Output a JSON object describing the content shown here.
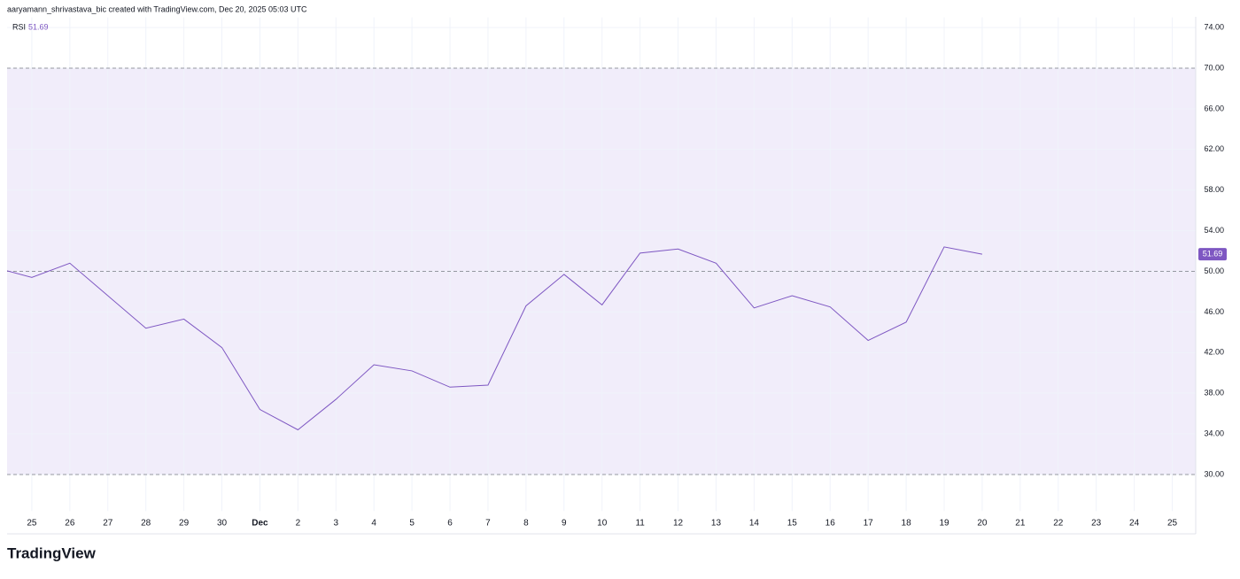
{
  "header": {
    "attribution": "aaryamann_shrivastava_bic created with TradingView.com, Dec 20, 2025 05:03 UTC"
  },
  "chart_data": {
    "type": "line",
    "categories": [
      null,
      "25",
      "26",
      "27",
      "28",
      "29",
      "30",
      "Dec",
      "2",
      "3",
      "4",
      "5",
      "6",
      "7",
      "8",
      "9",
      "10",
      "11",
      "12",
      "13",
      "14",
      "15",
      "16",
      "17",
      "18",
      "19",
      "20",
      "21",
      "22",
      "23",
      "24",
      "25"
    ],
    "series": [
      {
        "name": "RSI",
        "color": "#7e57c2",
        "values": [
          50.4,
          49.4,
          50.8,
          47.6,
          44.4,
          45.3,
          42.5,
          36.4,
          34.4,
          37.4,
          40.8,
          40.2,
          38.6,
          38.8,
          46.6,
          49.7,
          46.7,
          51.8,
          52.2,
          50.8,
          46.4,
          47.6,
          46.5,
          43.2,
          45.0,
          52.4,
          51.69,
          null,
          null,
          null,
          null,
          null
        ]
      }
    ],
    "ylim": [
      26.4,
      75
    ],
    "yticks": [
      {
        "value": 30,
        "label": "30.00"
      },
      {
        "value": 34,
        "label": "34.00"
      },
      {
        "value": 38,
        "label": "38.00"
      },
      {
        "value": 42,
        "label": "42.00"
      },
      {
        "value": 46,
        "label": "46.00"
      },
      {
        "value": 50,
        "label": "50.00"
      },
      {
        "value": 54,
        "label": "54.00"
      },
      {
        "value": 58,
        "label": "58.00"
      },
      {
        "value": 62,
        "label": "62.00"
      },
      {
        "value": 66,
        "label": "66.00"
      },
      {
        "value": 70,
        "label": "70.00"
      },
      {
        "value": 74,
        "label": "74.00"
      }
    ],
    "bands": {
      "levels": [
        70,
        50,
        30
      ],
      "fill": "#f1edfa"
    },
    "grid": true
  },
  "footer": {
    "logo": "TradingView"
  }
}
